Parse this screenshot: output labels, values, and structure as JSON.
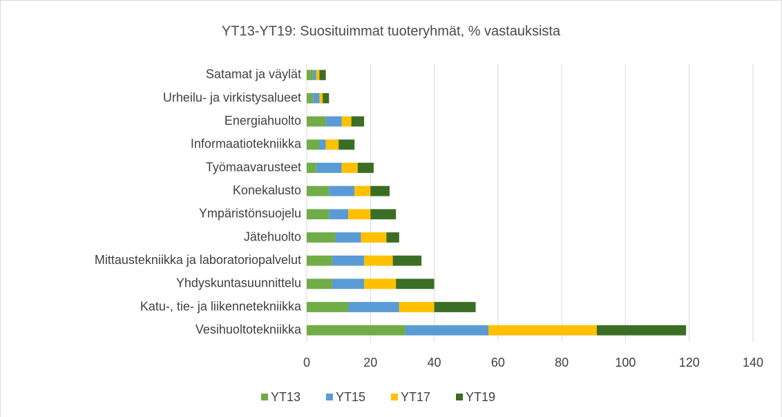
{
  "chart_data": {
    "type": "stacked_barh",
    "title": "YT13-YT19: Suosituimmat tuoteryhmät, % vastauksista",
    "categories": [
      "Satamat ja väylät",
      "Urheilu- ja virkistysalueet",
      "Energiahuolto",
      "Informaatiotekniikka",
      "Työmaavarusteet",
      "Konekalusto",
      "Ympäristönsuojelu",
      "Jätehuolto",
      "Mittaustekniikka ja laboratoriopalvelut",
      "Yhdyskuntasuunnittelu",
      "Katu-, tie- ja liikennetekniikka",
      "Vesihuoltotekniikka"
    ],
    "series": [
      {
        "name": "YT13",
        "color": "#70ad47",
        "values": [
          2,
          2,
          6,
          4,
          3,
          7,
          7,
          9,
          8,
          8,
          13,
          31
        ]
      },
      {
        "name": "YT15",
        "color": "#5b9bd5",
        "values": [
          1,
          2,
          5,
          2,
          8,
          8,
          6,
          8,
          10,
          10,
          16,
          26
        ]
      },
      {
        "name": "YT17",
        "color": "#ffc000",
        "values": [
          1,
          1,
          3,
          4,
          5,
          5,
          7,
          8,
          9,
          10,
          11,
          34
        ]
      },
      {
        "name": "YT19",
        "color": "#3b6e24",
        "values": [
          2,
          2,
          4,
          5,
          5,
          6,
          8,
          4,
          9,
          12,
          13,
          28
        ]
      }
    ],
    "xlim": [
      0,
      140
    ],
    "xticks": [
      0,
      20,
      40,
      60,
      80,
      100,
      120,
      140
    ],
    "grid": true,
    "legend": "bottom"
  }
}
